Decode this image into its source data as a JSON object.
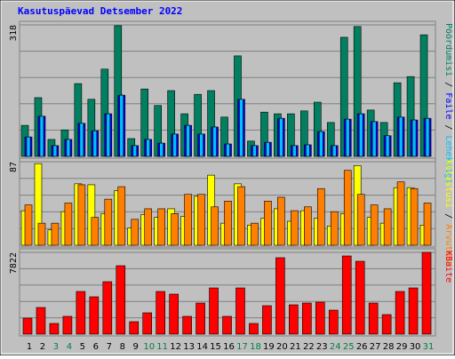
{
  "chart_data": [
    {
      "type": "bar",
      "title": "Kasutuspäevad Detsember 2022",
      "ylim": [
        0,
        318
      ],
      "yticks": [
        318
      ],
      "series": [
        {
          "name": "Pöördumisi",
          "color": "#008060",
          "values": [
            75,
            142,
            41,
            64,
            176,
            138,
            211,
            316,
            43,
            163,
            123,
            159,
            103,
            150,
            159,
            95,
            243,
            37,
            107,
            103,
            103,
            110,
            131,
            82,
            288,
            314,
            112,
            82,
            178,
            193,
            294
          ]
        },
        {
          "name": "Faile",
          "color": "#0000ff",
          "values": [
            47,
            97,
            26,
            41,
            80,
            62,
            103,
            148,
            26,
            41,
            32,
            54,
            75,
            54,
            71,
            30,
            138,
            26,
            34,
            92,
            26,
            28,
            60,
            26,
            90,
            103,
            84,
            50,
            95,
            88,
            92
          ]
        },
        {
          "name": "Lehekülgi",
          "color": "#00c0ff",
          "values": [
            47,
            97,
            26,
            41,
            80,
            62,
            103,
            148,
            26,
            41,
            32,
            54,
            75,
            54,
            71,
            30,
            138,
            26,
            34,
            92,
            26,
            28,
            60,
            26,
            90,
            103,
            84,
            50,
            95,
            88,
            92
          ]
        }
      ]
    },
    {
      "type": "bar",
      "ylim": [
        0,
        87
      ],
      "yticks": [
        87
      ],
      "series": [
        {
          "name": "Külastusi",
          "color": "#ffff00",
          "values": [
            36,
            85,
            16,
            35,
            64,
            63,
            33,
            57,
            18,
            32,
            29,
            38,
            30,
            51,
            73,
            23,
            64,
            21,
            28,
            38,
            25,
            36,
            28,
            20,
            33,
            83,
            29,
            23,
            60,
            60,
            21
          ]
        },
        {
          "name": "Arvuteid",
          "color": "#ff8000",
          "values": [
            42,
            23,
            23,
            44,
            63,
            29,
            48,
            61,
            27,
            38,
            38,
            33,
            53,
            53,
            40,
            46,
            61,
            23,
            46,
            50,
            36,
            40,
            59,
            35,
            78,
            53,
            42,
            38,
            66,
            59,
            44
          ]
        }
      ]
    },
    {
      "type": "bar",
      "ylim": [
        0,
        7822
      ],
      "yticks": [
        7822
      ],
      "categories": [
        "1",
        "2",
        "3",
        "4",
        "5",
        "6",
        "7",
        "8",
        "9",
        "10",
        "11",
        "12",
        "13",
        "14",
        "15",
        "16",
        "17",
        "18",
        "19",
        "20",
        "21",
        "22",
        "23",
        "24",
        "25",
        "26",
        "27",
        "28",
        "29",
        "30",
        "31"
      ],
      "category_colors": [
        "#000000",
        "#000000",
        "#008040",
        "#008040",
        "#000000",
        "#000000",
        "#000000",
        "#000000",
        "#000000",
        "#008040",
        "#008040",
        "#000000",
        "#000000",
        "#000000",
        "#000000",
        "#000000",
        "#008040",
        "#008040",
        "#000000",
        "#000000",
        "#000000",
        "#000000",
        "#000000",
        "#008040",
        "#008040",
        "#000000",
        "#000000",
        "#000000",
        "#000000",
        "#000000",
        "#008040"
      ],
      "series": [
        {
          "name": "KBaite",
          "color": "#ff0000",
          "values": [
            1530,
            2550,
            1020,
            1700,
            4080,
            3570,
            5015,
            6545,
            1190,
            2040,
            4080,
            3825,
            1700,
            2975,
            4420,
            1700,
            4420,
            1020,
            2720,
            7310,
            2805,
            2975,
            3060,
            2295,
            7480,
            6970,
            2975,
            1870,
            4080,
            4420,
            7822
          ]
        }
      ]
    }
  ]
}
